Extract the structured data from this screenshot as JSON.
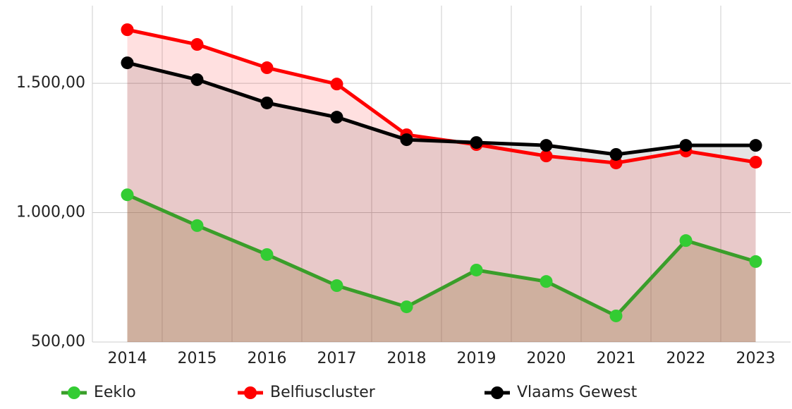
{
  "chart_data": {
    "type": "line",
    "categories": [
      "2014",
      "2015",
      "2016",
      "2017",
      "2018",
      "2019",
      "2020",
      "2021",
      "2022",
      "2023"
    ],
    "series": [
      {
        "name": "Eeklo",
        "color": "#33cc33",
        "values": [
          1069,
          950,
          838,
          718,
          636,
          778,
          734,
          601,
          892,
          811
        ]
      },
      {
        "name": "Belfiuscluster",
        "color": "#ff0000",
        "values": [
          1707,
          1650,
          1560,
          1497,
          1301,
          1263,
          1219,
          1192,
          1238,
          1195
        ]
      },
      {
        "name": "Vlaams Gewest",
        "color": "#000000",
        "values": [
          1579,
          1514,
          1424,
          1369,
          1282,
          1271,
          1260,
          1225,
          1260,
          1260
        ]
      }
    ],
    "ylim": [
      500,
      1800
    ],
    "yticks": [
      {
        "value": 500,
        "label": "500,00"
      },
      {
        "value": 1000,
        "label": "1.000,00"
      },
      {
        "value": 1500,
        "label": "1.500,00"
      }
    ],
    "grid": true,
    "legend": "bottom"
  }
}
